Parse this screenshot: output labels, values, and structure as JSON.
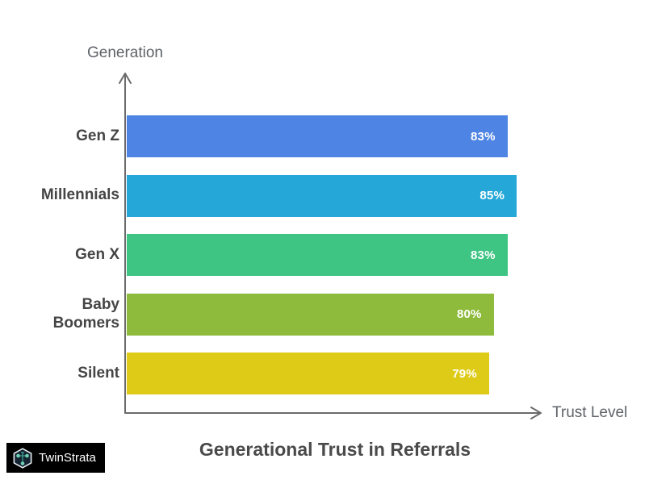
{
  "brand": {
    "logo_text": "TwinStrata",
    "logo_bg": "#000000",
    "logo_icon": "hexagon-network-icon"
  },
  "chart_data": {
    "type": "bar",
    "orientation": "horizontal",
    "title": "Generational Trust in Referrals",
    "xlabel": "Trust Level",
    "ylabel": "Generation",
    "categories": [
      "Gen Z",
      "Millennials",
      "Gen X",
      "Baby Boomers",
      "Silent"
    ],
    "values": [
      83,
      85,
      83,
      80,
      79
    ],
    "value_labels": [
      "83%",
      "85%",
      "83%",
      "80%",
      "79%"
    ],
    "unit": "%",
    "series_colors": [
      "#4e84e4",
      "#25a8d8",
      "#3ec584",
      "#8ebb3c",
      "#decb17"
    ],
    "value_label_color": "#ffffff",
    "axis_color": "#6b6b6b",
    "category_label_color": "#454545",
    "axis_title_color": "#5f6368",
    "grid": false,
    "legend": false
  }
}
